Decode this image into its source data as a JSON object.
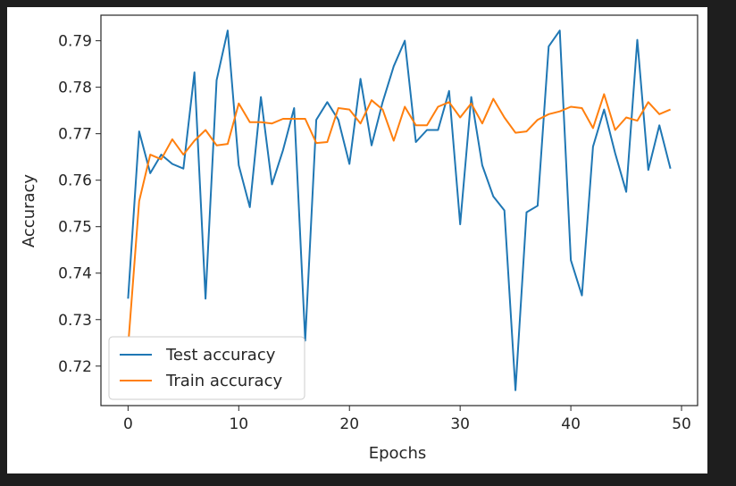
{
  "chart_data": {
    "type": "line",
    "xlabel": "Epochs",
    "ylabel": "Accuracy",
    "xlim": [
      -2.45,
      51.45
    ],
    "ylim": [
      0.7115,
      0.7955
    ],
    "xticks": [
      0,
      10,
      20,
      30,
      40,
      50
    ],
    "yticks": [
      0.72,
      0.73,
      0.74,
      0.75,
      0.76,
      0.77,
      0.78,
      0.79
    ],
    "xtick_labels": [
      "0",
      "10",
      "20",
      "30",
      "40",
      "50"
    ],
    "ytick_labels": [
      "0.72",
      "0.73",
      "0.74",
      "0.75",
      "0.76",
      "0.77",
      "0.78",
      "0.79"
    ],
    "grid": false,
    "legend_position": "lower-left",
    "x": [
      0,
      1,
      2,
      3,
      4,
      5,
      6,
      7,
      8,
      9,
      10,
      11,
      12,
      13,
      14,
      15,
      16,
      17,
      18,
      19,
      20,
      21,
      22,
      23,
      24,
      25,
      26,
      27,
      28,
      29,
      30,
      31,
      32,
      33,
      34,
      35,
      36,
      37,
      38,
      39,
      40,
      41,
      42,
      43,
      44,
      45,
      46,
      47,
      48,
      49
    ],
    "series": [
      {
        "name": "Test accuracy",
        "color": "#1f77b4",
        "values": [
          0.7345,
          0.7705,
          0.7615,
          0.7655,
          0.7635,
          0.7625,
          0.7832,
          0.7345,
          0.7815,
          0.7922,
          0.7632,
          0.7542,
          0.7779,
          0.7591,
          0.7665,
          0.7755,
          0.7255,
          0.773,
          0.7768,
          0.773,
          0.7635,
          0.7818,
          0.7675,
          0.7768,
          0.7845,
          0.79,
          0.7682,
          0.7708,
          0.7708,
          0.7792,
          0.7505,
          0.7779,
          0.7632,
          0.7565,
          0.7535,
          0.7148,
          0.7531,
          0.7545,
          0.7888,
          0.7922,
          0.7428,
          0.7352,
          0.7672,
          0.7752,
          0.7658,
          0.7575,
          0.7902,
          0.7622,
          0.7718,
          0.7625
        ]
      },
      {
        "name": "Train accuracy",
        "color": "#ff7f0e",
        "values": [
          0.7242,
          0.7555,
          0.7655,
          0.7645,
          0.7688,
          0.7655,
          0.7685,
          0.7708,
          0.7675,
          0.7678,
          0.7765,
          0.7725,
          0.7725,
          0.7722,
          0.7732,
          0.7732,
          0.7732,
          0.768,
          0.7682,
          0.7755,
          0.7752,
          0.7722,
          0.7772,
          0.7752,
          0.7685,
          0.7758,
          0.7718,
          0.7718,
          0.7758,
          0.7768,
          0.7735,
          0.7765,
          0.7722,
          0.7775,
          0.7735,
          0.7702,
          0.7705,
          0.773,
          0.7742,
          0.7748,
          0.7758,
          0.7755,
          0.7712,
          0.7785,
          0.7708,
          0.7735,
          0.7728,
          0.7768,
          0.7742,
          0.7752
        ]
      }
    ]
  }
}
